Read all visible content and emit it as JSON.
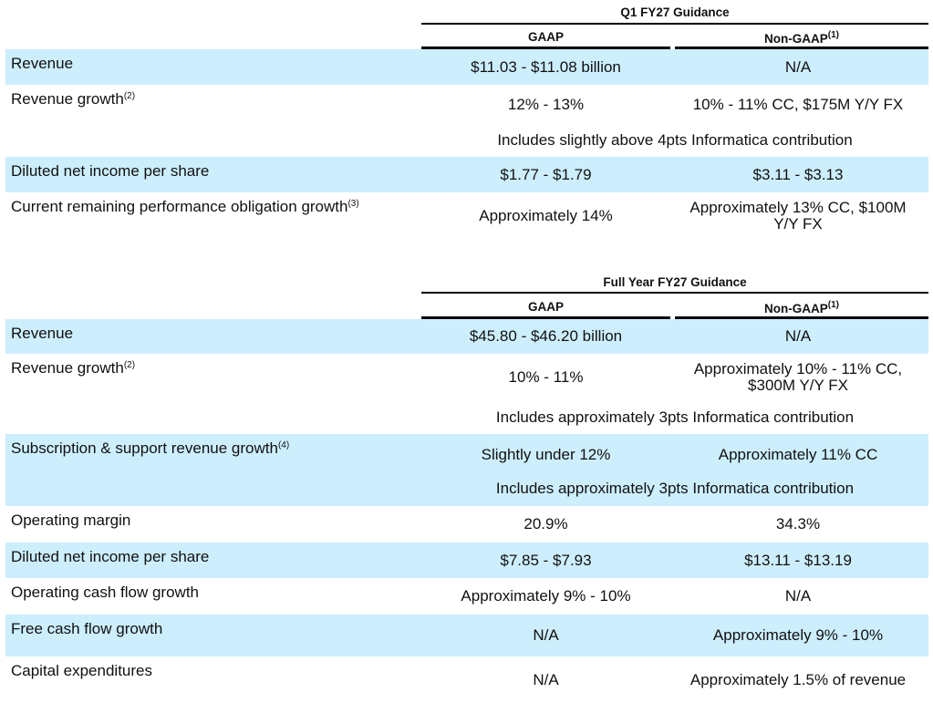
{
  "sections": [
    {
      "title": "Q1 FY27 Guidance",
      "headers": {
        "gaap": "GAAP",
        "non_gaap": "Non-GAAP",
        "non_gaap_footnote": "(1)"
      },
      "rows": [
        {
          "label": "Revenue",
          "footnote": "",
          "gaap": "$11.03 - $11.08 billion",
          "non_gaap": "N/A",
          "shaded": true
        },
        {
          "label": "Revenue growth",
          "footnote": "(2)",
          "gaap": "12% - 13%",
          "non_gaap": "10% - 11% CC, $175M Y/Y FX",
          "note": "Includes slightly above 4pts Informatica contribution",
          "shaded": false
        },
        {
          "label": "Diluted net income per share",
          "footnote": "",
          "gaap": "$1.77 - $1.79",
          "non_gaap": "$3.11 - $3.13",
          "shaded": true
        },
        {
          "label": "Current remaining performance obligation growth",
          "footnote": "(3)",
          "gaap": "Approximately 14%",
          "non_gaap": "Approximately 13% CC, $100M Y/Y FX",
          "shaded": false
        }
      ]
    },
    {
      "title": "Full Year FY27 Guidance",
      "headers": {
        "gaap": "GAAP",
        "non_gaap": "Non-GAAP",
        "non_gaap_footnote": "(1)"
      },
      "rows": [
        {
          "label": "Revenue",
          "footnote": "",
          "gaap": "$45.80 - $46.20 billion",
          "non_gaap": "N/A",
          "shaded": true
        },
        {
          "label": "Revenue growth",
          "footnote": "(2)",
          "gaap": "10% - 11%",
          "non_gaap": "Approximately 10% - 11% CC, $300M Y/Y FX",
          "note": "Includes approximately 3pts Informatica contribution",
          "shaded": false
        },
        {
          "label": "Subscription & support revenue growth",
          "footnote": "(4)",
          "gaap": "Slightly under 12%",
          "non_gaap": "Approximately 11% CC",
          "note": "Includes approximately 3pts Informatica contribution",
          "shaded": true
        },
        {
          "label": "Operating margin",
          "footnote": "",
          "gaap": "20.9%",
          "non_gaap": "34.3%",
          "shaded": false
        },
        {
          "label": "Diluted net income per share",
          "footnote": "",
          "gaap": "$7.85 - $7.93",
          "non_gaap": "$13.11 - $13.19",
          "shaded": true
        },
        {
          "label": "Operating cash flow growth",
          "footnote": "",
          "gaap": "Approximately 9% - 10%",
          "non_gaap": "N/A",
          "shaded": false
        },
        {
          "label": "Free cash flow growth",
          "footnote": "",
          "gaap": "N/A",
          "non_gaap": "Approximately 9% - 10%",
          "shaded": true
        },
        {
          "label": "Capital expenditures",
          "footnote": "",
          "gaap": "N/A",
          "non_gaap": "Approximately 1.5% of revenue",
          "shaded": false
        }
      ]
    }
  ]
}
